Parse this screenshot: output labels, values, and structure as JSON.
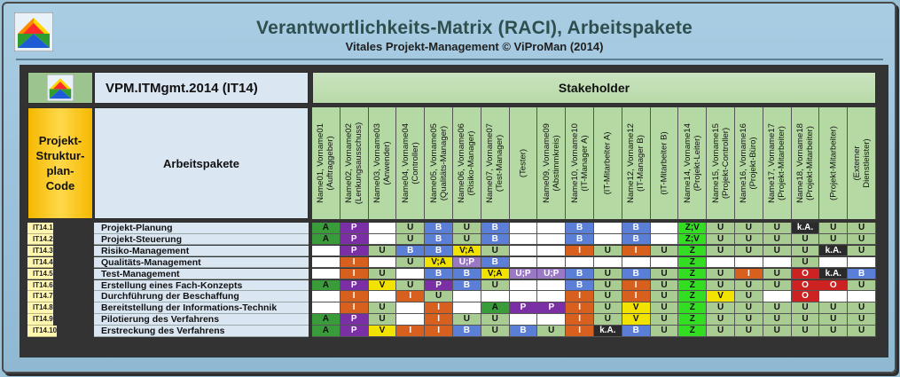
{
  "header": {
    "title": "Verantwortlichkeits-Matrix  (RACI), Arbeitspakete",
    "subtitle": "Vitales Projekt-Management © ViProMan  (2014)"
  },
  "table": {
    "project_label": "VPM.ITMgmt.2014 (IT14)",
    "stakeholder_label": "Stakeholder",
    "psp_label_lines": [
      "Projekt-",
      "Struktur-",
      "plan-",
      "Code"
    ],
    "ap_label": "Arbeitspakete",
    "columns": [
      "Name01, Vorname01\n(Auftraggeber)",
      "Name02, Vorname02\n(Lenkungsausschuss)",
      "Name03, Vorname03\n(Anwender)",
      "Name04, Vorname04\n(Controller)",
      "Name05, Vorname05\n(Qualitäts-Manager)",
      "Name06, Vorname06\n(Risiko-Manager)",
      "Name07, Vorname07\n(Test-Manager)",
      "(Tester)",
      "Name09, Vorname09\n(Abstimmkreis)",
      "Name10, Vorname10\n(IT-Manager A)",
      "(IT-Mitarbeiter A)",
      "Name12, Vorname12\n(IT-Manager B)",
      "(IT-Mitarbeiter B)",
      "Name14, Vorname14\n(Projekt-Leiter)",
      "Name15, Vorname15\n(Projekt-Controller)",
      "Name16, Vorname16\n(Projekt-Büro)",
      "Name17, Vorname17\n(Projekt-Mitarbeiter)",
      "Name18, Vorname18\n(Projekt-Mitarbeiter)",
      "(Projekt-Mitarbeiter)",
      "(Externer\nDienstleister)"
    ],
    "rows": [
      {
        "code": "IT14.1",
        "name": "Projekt-Planung",
        "cells": [
          "A",
          "P",
          "",
          "U",
          "B",
          "U",
          "B",
          "",
          "",
          "B",
          "",
          "B",
          "",
          "Z;V",
          "U",
          "U",
          "U",
          "k.A.",
          "U",
          "U"
        ]
      },
      {
        "code": "IT14.2",
        "name": "Projekt-Steuerung",
        "cells": [
          "A",
          "P",
          "",
          "U",
          "B",
          "U",
          "B",
          "",
          "",
          "B",
          "",
          "B",
          "",
          "Z;V",
          "U",
          "U",
          "U",
          "U",
          "U",
          "U"
        ]
      },
      {
        "code": "IT14.3",
        "name": "Risiko-Management",
        "cells": [
          "",
          "P",
          "U",
          "B",
          "B",
          "V;A",
          "U",
          "",
          "",
          "I",
          "U",
          "I",
          "U",
          "Z",
          "U",
          "U",
          "U",
          "U",
          "k.A.",
          "U"
        ]
      },
      {
        "code": "IT14.4",
        "name": "Qualitäts-Management",
        "cells": [
          "",
          "I",
          "",
          "U",
          "V;A",
          "U;P",
          "B",
          "",
          "",
          "",
          "",
          "",
          "",
          "Z",
          "",
          "",
          "",
          "U",
          "",
          ""
        ]
      },
      {
        "code": "IT14.5",
        "name": "Test-Management",
        "cells": [
          "",
          "I",
          "U",
          "",
          "B",
          "B",
          "V;A",
          "U;P",
          "U;P",
          "B",
          "U",
          "B",
          "U",
          "Z",
          "U",
          "I",
          "U",
          "O",
          "k.A.",
          "B"
        ]
      },
      {
        "code": "IT14.6",
        "name": "Erstellung eines Fach-Konzepts",
        "cells": [
          "A",
          "P",
          "V",
          "U",
          "P",
          "B",
          "U",
          "",
          "",
          "B",
          "U",
          "I",
          "U",
          "Z",
          "U",
          "U",
          "U",
          "O",
          "O",
          "U"
        ]
      },
      {
        "code": "IT14.7",
        "name": "Durchführung der Beschaffung",
        "cells": [
          "",
          "I",
          "",
          "I",
          "U",
          "",
          "",
          "",
          "",
          "I",
          "U",
          "I",
          "U",
          "Z",
          "V",
          "U",
          "",
          "O",
          "",
          ""
        ]
      },
      {
        "code": "IT14.8",
        "name": "Bereitstellung der Informations-Technik",
        "cells": [
          "",
          "I",
          "U",
          "",
          "I",
          "",
          "A",
          "P",
          "P",
          "I",
          "U",
          "V",
          "U",
          "Z",
          "U",
          "U",
          "U",
          "U",
          "U",
          "U"
        ]
      },
      {
        "code": "IT14.9",
        "name": "Pilotierung des Verfahrens",
        "cells": [
          "A",
          "P",
          "U",
          "",
          "I",
          "U",
          "U",
          "",
          "",
          "I",
          "U",
          "V",
          "U",
          "Z",
          "U",
          "U",
          "U",
          "U",
          "U",
          "U"
        ]
      },
      {
        "code": "IT14.10",
        "name": "Erstreckung des Verfahrens",
        "cells": [
          "A",
          "P",
          "V",
          "I",
          "I",
          "B",
          "U",
          "B",
          "U",
          "I",
          "k.A.",
          "B",
          "U",
          "Z",
          "U",
          "U",
          "U",
          "U",
          "U",
          "U"
        ]
      }
    ]
  },
  "colors": {
    "A": "#3a9b3a",
    "P": "#7b2fa5",
    "U": "#a9cc92",
    "B": "#5b7fd6",
    "I": "#d7601f",
    "V": "#f2e200",
    "Z": "#33dd22",
    "ZV": "#33dd22",
    "VA": "#f2e200",
    "UP": "#9b78c4",
    "kA": "#2b2b2b",
    "O": "#cc2222",
    "empty": "#ffffff"
  }
}
